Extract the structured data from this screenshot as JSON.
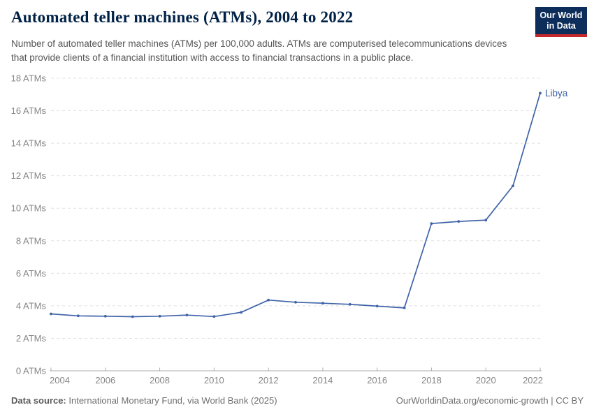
{
  "header": {
    "title": "Automated teller machines (ATMs), 2004 to 2022",
    "subtitle": "Number of automated teller machines (ATMs) per 100,000 adults. ATMs are computerised telecommunications devices that provide clients of a financial institution with access to financial transactions in a public place.",
    "logo": {
      "line1": "Our World",
      "line2": "in Data"
    }
  },
  "chart_data": {
    "type": "line",
    "title": "Automated teller machines (ATMs), 2004 to 2022",
    "x": [
      2004,
      2005,
      2006,
      2007,
      2008,
      2009,
      2010,
      2011,
      2012,
      2013,
      2014,
      2015,
      2016,
      2017,
      2018,
      2019,
      2020,
      2021,
      2022
    ],
    "series": [
      {
        "name": "Libya",
        "color": "#3f63a8",
        "values": [
          3.5,
          3.38,
          3.36,
          3.33,
          3.36,
          3.43,
          3.34,
          3.6,
          4.35,
          4.22,
          4.16,
          4.09,
          3.98,
          3.87,
          9.06,
          9.19,
          9.27,
          11.38,
          17.08
        ]
      }
    ],
    "ylim": [
      0,
      18
    ],
    "ytick_step": 2,
    "ytick_suffix": " ATMs",
    "xticks": [
      2004,
      2006,
      2008,
      2010,
      2012,
      2014,
      2016,
      2018,
      2020,
      2022
    ],
    "grid": "horizontal-dashed",
    "legend_position": "end-of-line-label",
    "colors": {
      "gridline": "#e0e0e0",
      "axis": "#adadad",
      "tick_label": "#858585"
    }
  },
  "footer": {
    "source_label": "Data source:",
    "source_text": " International Monetary Fund, via World Bank (2025)",
    "credit": "OurWorldinData.org/economic-growth | CC BY"
  }
}
